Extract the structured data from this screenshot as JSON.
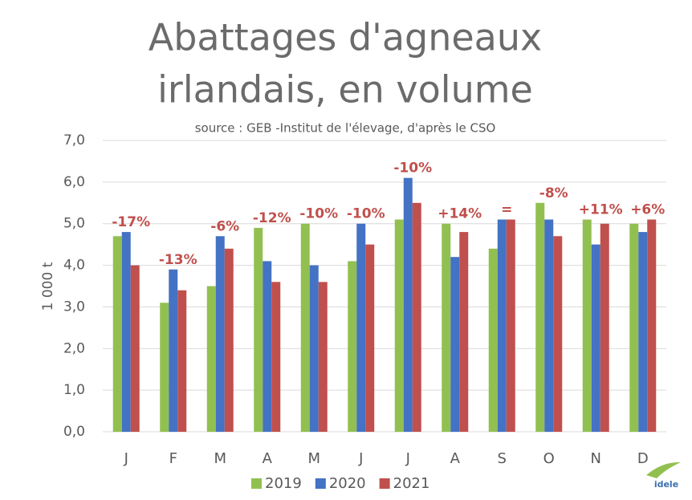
{
  "chart_data": {
    "type": "bar",
    "title_lines": [
      "Abattages d'agneaux",
      "irlandais, en volume"
    ],
    "subtitle": "source : GEB -Institut de l'élevage, d'après le CSO",
    "y_label": "1 000 t",
    "logo": "idele",
    "categories": [
      "J",
      "F",
      "M",
      "A",
      "M",
      "J",
      "J",
      "A",
      "S",
      "O",
      "N",
      "D"
    ],
    "series": [
      {
        "name": "2019",
        "color": "#92c050",
        "values": [
          4.7,
          3.1,
          3.5,
          4.9,
          5.0,
          4.1,
          5.1,
          5.0,
          4.4,
          5.5,
          5.1,
          5.0
        ]
      },
      {
        "name": "2020",
        "color": "#4472c4",
        "values": [
          4.8,
          3.9,
          4.7,
          4.1,
          4.0,
          5.0,
          6.1,
          4.2,
          5.1,
          5.1,
          4.5,
          4.8
        ]
      },
      {
        "name": "2021",
        "color": "#c0504d",
        "values": [
          4.0,
          3.4,
          4.4,
          3.6,
          3.6,
          4.5,
          5.5,
          4.8,
          5.1,
          4.7,
          5.0,
          5.1
        ]
      }
    ],
    "annotations": [
      "-17%",
      "-13%",
      "-6%",
      "-12%",
      "-10%",
      "-10%",
      "-10%",
      "+14%",
      "=",
      "-8%",
      "+11%",
      "+6%"
    ],
    "ylim": [
      0,
      7
    ],
    "yticks": [
      {
        "value": 0,
        "label": "0,0"
      },
      {
        "value": 1,
        "label": "1,0"
      },
      {
        "value": 2,
        "label": "2,0"
      },
      {
        "value": 3,
        "label": "3,0"
      },
      {
        "value": 4,
        "label": "4,0"
      },
      {
        "value": 5,
        "label": "5,0"
      },
      {
        "value": 6,
        "label": "6,0"
      },
      {
        "value": 7,
        "label": "7,0"
      }
    ],
    "grid": true
  }
}
